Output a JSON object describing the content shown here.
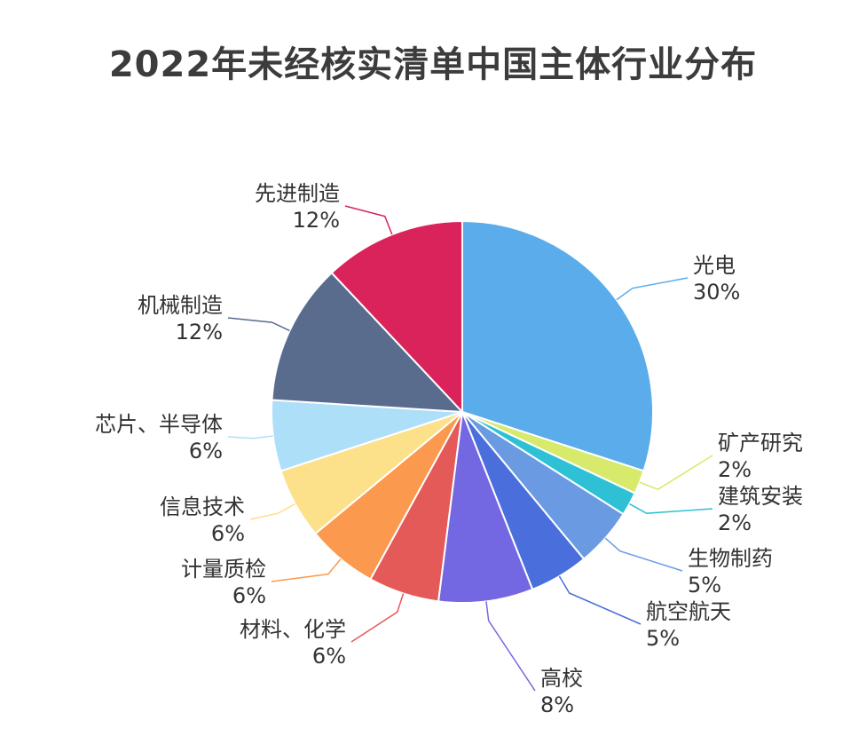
{
  "chart_data": {
    "type": "pie",
    "title": "2022年未经核实清单中国主体行业分布",
    "categories": [
      "光电",
      "矿产研究",
      "建筑安装",
      "生物制药",
      "航空航天",
      "高校",
      "材料、化学",
      "计量质检",
      "信息技术",
      "芯片、半导体",
      "机械制造",
      "先进制造"
    ],
    "values": [
      30,
      2,
      2,
      5,
      5,
      8,
      6,
      6,
      6,
      6,
      12,
      12
    ],
    "percent_labels": [
      "30%",
      "2%",
      "2%",
      "5%",
      "5%",
      "8%",
      "6%",
      "6%",
      "6%",
      "6%",
      "12%",
      "12%"
    ],
    "colors": [
      "#5aacea",
      "#d7ea6b",
      "#2ec1d6",
      "#6a9be2",
      "#4a6fdc",
      "#7468e2",
      "#e35a58",
      "#fb9a4f",
      "#fde08a",
      "#aedff9",
      "#5a6c8e",
      "#d9235a"
    ],
    "legend": "none",
    "start_angle_deg": 0,
    "direction": "clockwise"
  }
}
